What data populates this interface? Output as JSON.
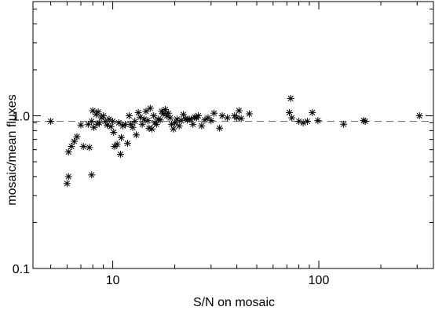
{
  "chart_data": {
    "type": "scatter",
    "title": "",
    "xlabel": "S/N on mosaic",
    "ylabel": "mosaic/mean fluxes",
    "xscale": "log",
    "yscale": "log",
    "xlim": [
      4.1,
      360
    ],
    "ylim": [
      0.1,
      5.6
    ],
    "x_tick_labels": [
      "10",
      "100"
    ],
    "y_tick_labels": [
      "0.1",
      "1.0"
    ],
    "reference_line": {
      "y": 0.92,
      "style": "dashed",
      "color": "#777777"
    },
    "grid": false,
    "legend": "none",
    "marker": "asterisk",
    "series": [
      {
        "points": [
          [
            5.0,
            0.92
          ],
          [
            6.0,
            0.36
          ],
          [
            6.1,
            0.4
          ],
          [
            6.1,
            0.58
          ],
          [
            6.3,
            0.63
          ],
          [
            6.5,
            0.68
          ],
          [
            6.7,
            0.73
          ],
          [
            7.0,
            0.87
          ],
          [
            7.2,
            0.63
          ],
          [
            7.6,
            0.88
          ],
          [
            7.7,
            0.62
          ],
          [
            7.9,
            0.41
          ],
          [
            7.9,
            0.92
          ],
          [
            8.0,
            1.08
          ],
          [
            8.1,
            0.84
          ],
          [
            8.3,
            1.02
          ],
          [
            8.4,
            0.88
          ],
          [
            8.5,
            1.06
          ],
          [
            8.6,
            0.9
          ],
          [
            8.8,
            0.97
          ],
          [
            9.0,
            1.0
          ],
          [
            9.2,
            0.92
          ],
          [
            9.4,
            0.87
          ],
          [
            9.6,
            0.95
          ],
          [
            9.8,
            0.85
          ],
          [
            10.0,
            0.92
          ],
          [
            10.1,
            0.78
          ],
          [
            10.2,
            0.63
          ],
          [
            10.5,
            0.65
          ],
          [
            10.7,
            0.9
          ],
          [
            10.9,
            0.56
          ],
          [
            11.0,
            0.72
          ],
          [
            11.2,
            0.86
          ],
          [
            11.5,
            0.88
          ],
          [
            11.8,
            0.66
          ],
          [
            12.0,
            1.0
          ],
          [
            12.2,
            0.88
          ],
          [
            12.5,
            0.84
          ],
          [
            12.8,
            0.92
          ],
          [
            13.0,
            0.75
          ],
          [
            13.3,
            1.05
          ],
          [
            13.6,
            0.98
          ],
          [
            13.9,
            0.88
          ],
          [
            14.2,
            0.95
          ],
          [
            14.5,
            1.07
          ],
          [
            14.8,
            0.93
          ],
          [
            15.0,
            0.83
          ],
          [
            15.2,
            1.12
          ],
          [
            15.5,
            0.82
          ],
          [
            15.8,
            1.0
          ],
          [
            16.0,
            0.9
          ],
          [
            16.3,
            0.88
          ],
          [
            16.6,
            0.95
          ],
          [
            17.0,
            0.94
          ],
          [
            17.3,
            1.07
          ],
          [
            17.6,
            1.03
          ],
          [
            18.0,
            1.1
          ],
          [
            18.3,
            1.0
          ],
          [
            18.6,
            1.04
          ],
          [
            19.0,
            0.97
          ],
          [
            19.3,
            0.88
          ],
          [
            19.7,
            0.82
          ],
          [
            20.0,
            0.9
          ],
          [
            20.5,
            0.95
          ],
          [
            21.0,
            0.86
          ],
          [
            21.5,
            0.93
          ],
          [
            22.0,
            1.02
          ],
          [
            22.5,
            0.96
          ],
          [
            23.0,
            0.94
          ],
          [
            23.5,
            0.95
          ],
          [
            24.0,
            0.95
          ],
          [
            24.5,
            0.88
          ],
          [
            25.0,
            0.98
          ],
          [
            25.5,
            0.97
          ],
          [
            26.0,
            1.0
          ],
          [
            27.0,
            0.86
          ],
          [
            28.0,
            0.94
          ],
          [
            29.0,
            0.97
          ],
          [
            30.0,
            0.93
          ],
          [
            31.0,
            1.04
          ],
          [
            33.0,
            0.83
          ],
          [
            34.0,
            1.0
          ],
          [
            36.0,
            0.97
          ],
          [
            39.0,
            1.0
          ],
          [
            40.0,
            0.97
          ],
          [
            41.0,
            1.08
          ],
          [
            42.0,
            0.96
          ],
          [
            46.0,
            1.03
          ],
          [
            72.0,
            1.05
          ],
          [
            73.0,
            1.3
          ],
          [
            74.0,
            0.97
          ],
          [
            80.0,
            0.92
          ],
          [
            84.0,
            0.9
          ],
          [
            88.0,
            0.92
          ],
          [
            93.0,
            1.05
          ],
          [
            99.0,
            0.93
          ],
          [
            132.0,
            0.88
          ],
          [
            165.0,
            0.93
          ],
          [
            168.0,
            0.92
          ],
          [
            308.0,
            1.0
          ]
        ]
      }
    ]
  }
}
